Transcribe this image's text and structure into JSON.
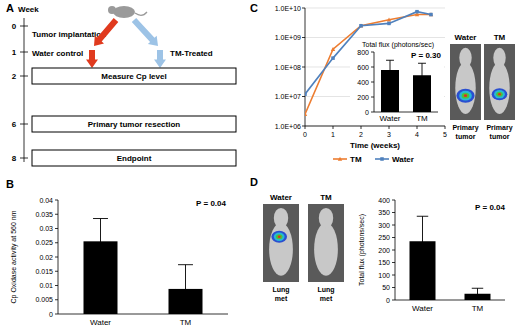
{
  "panel_labels": [
    "A",
    "B",
    "C",
    "D"
  ],
  "diagram": {
    "axis_label": "Week",
    "weeks": [
      0,
      1,
      2,
      6,
      8
    ],
    "implantation": "Tumor implantation",
    "arms": [
      "Water control",
      "TM-Treated"
    ],
    "steps": [
      "Measure Cp level",
      "Primary tumor resection",
      "Endpoint"
    ]
  },
  "images": [
    {
      "labels": [
        "Water",
        "TM"
      ],
      "caption": "Primary tumor"
    },
    {
      "labels": [
        "Water",
        "TM"
      ],
      "caption": "Lung met"
    }
  ],
  "chart_data": [
    {
      "type": "bar",
      "categories": [
        "Water",
        "TM"
      ],
      "values": [
        0.0255,
        0.0088
      ],
      "errors": [
        0.008,
        0.0085
      ],
      "color": "#000000",
      "ylim": [
        0,
        0.04
      ],
      "yticks": [
        0,
        0.005,
        0.01,
        0.015,
        0.02,
        0.025,
        0.03,
        0.035,
        0.04
      ],
      "ylabel": "Cp Oxidase activity at 560 nm",
      "annotations": [
        "P = 0.04"
      ]
    },
    {
      "type": "line",
      "x": [
        0,
        1,
        2,
        3,
        4,
        4.5
      ],
      "series": [
        {
          "name": "TM",
          "color": "#ed7d31",
          "marker": "triangle",
          "values": [
            2500000,
            400000000,
            2500000000,
            4000000000,
            6000000000,
            6000000000
          ]
        },
        {
          "name": "Water",
          "color": "#4f81bd",
          "marker": "square",
          "values": [
            12000000,
            200000000,
            2500000000,
            3000000000,
            7500000000,
            6000000000
          ]
        }
      ],
      "log": "y",
      "grid": true,
      "legend": "bottom",
      "xlim": [
        0,
        5
      ],
      "xticks": [
        0,
        1,
        2,
        3,
        4,
        5
      ],
      "xlabel": "Time (weeks)",
      "ylim": [
        1000000,
        10000000000
      ],
      "yticks": [
        {
          "value": 1000000,
          "label": "1.0E+06"
        },
        {
          "value": 10000000,
          "label": "1.0E+07"
        },
        {
          "value": 100000000,
          "label": "1.0E+08"
        },
        {
          "value": 1000000000,
          "label": "1.0E+09"
        },
        {
          "value": 10000000000,
          "label": "1.0E+10"
        }
      ]
    },
    {
      "type": "bar",
      "title": "Total flux (photons/sec)",
      "categories": [
        "Water",
        "TM"
      ],
      "values": [
        560,
        490
      ],
      "errors": [
        130,
        160
      ],
      "color": "#000000",
      "ylim": [
        0,
        800
      ],
      "yticks": [
        0,
        200,
        400,
        600,
        800
      ],
      "annotations": [
        "P = 0.30"
      ]
    },
    {
      "type": "bar",
      "categories": [
        "Water",
        "TM"
      ],
      "values": [
        235,
        25
      ],
      "errors": [
        100,
        22
      ],
      "color": "#000000",
      "ylim": [
        0,
        400
      ],
      "yticks": [
        0,
        50,
        100,
        150,
        200,
        250,
        300,
        350,
        400
      ],
      "ylabel": "Total flux (photons/sec)",
      "annotations": [
        "P = 0.04"
      ]
    }
  ]
}
